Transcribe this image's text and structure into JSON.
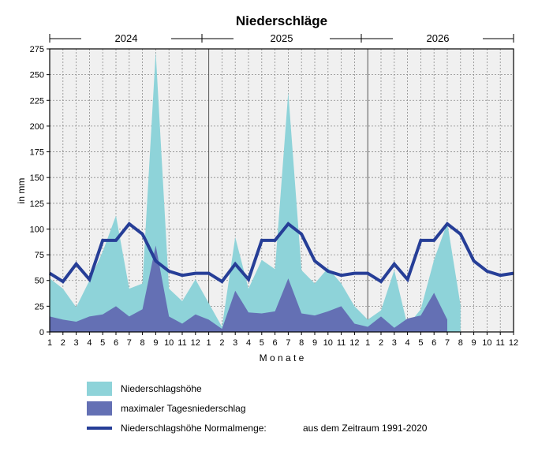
{
  "chart_data": {
    "type": "area",
    "title": "Niederschläge",
    "xlabel": "M o n a t e",
    "ylabel": "in mm",
    "ylim": [
      0,
      275
    ],
    "yticks": [
      0,
      25,
      50,
      75,
      100,
      125,
      150,
      175,
      200,
      225,
      250,
      275
    ],
    "years": [
      "2024",
      "2025",
      "2026"
    ],
    "categories": [
      "1",
      "2",
      "3",
      "4",
      "5",
      "6",
      "7",
      "8",
      "9",
      "10",
      "11",
      "12",
      "1",
      "2",
      "3",
      "4",
      "5",
      "6",
      "7",
      "8",
      "9",
      "10",
      "11",
      "12",
      "1",
      "2",
      "3",
      "4",
      "5",
      "6",
      "7",
      "8",
      "9",
      "10",
      "11",
      "12"
    ],
    "grid": true,
    "series": [
      {
        "name": "Niederschlagshöhe",
        "type": "area",
        "color": "#8ed3d9",
        "values": [
          52,
          42,
          24,
          50,
          78,
          113,
          42,
          47,
          272,
          42,
          30,
          51,
          28,
          5,
          92,
          42,
          70,
          61,
          233,
          60,
          47,
          62,
          47,
          25,
          12,
          21,
          60,
          6,
          22,
          70,
          106,
          26,
          null,
          null,
          null,
          null
        ]
      },
      {
        "name": "maximaler Tagesniederschlag",
        "type": "area",
        "color": "#6470b4",
        "values": [
          15,
          12,
          10,
          15,
          17,
          25,
          15,
          22,
          84,
          15,
          8,
          17,
          12,
          3,
          40,
          19,
          18,
          20,
          52,
          18,
          16,
          20,
          25,
          8,
          5,
          15,
          4,
          13,
          16,
          38,
          12,
          null,
          null,
          null,
          null,
          null
        ]
      },
      {
        "name": "Niederschlagshöhe Normalmenge:",
        "type": "line",
        "color": "#263e97",
        "values": [
          57,
          49,
          66,
          51,
          89,
          89,
          105,
          95,
          69,
          59,
          55,
          57,
          57,
          49,
          66,
          51,
          89,
          89,
          105,
          95,
          69,
          59,
          55,
          57,
          57,
          49,
          66,
          51,
          89,
          89,
          105,
          95,
          69,
          59,
          55,
          57
        ]
      }
    ],
    "legend_position": "bottom",
    "normal_period_note": "aus dem Zeitraum 1991-2020"
  }
}
